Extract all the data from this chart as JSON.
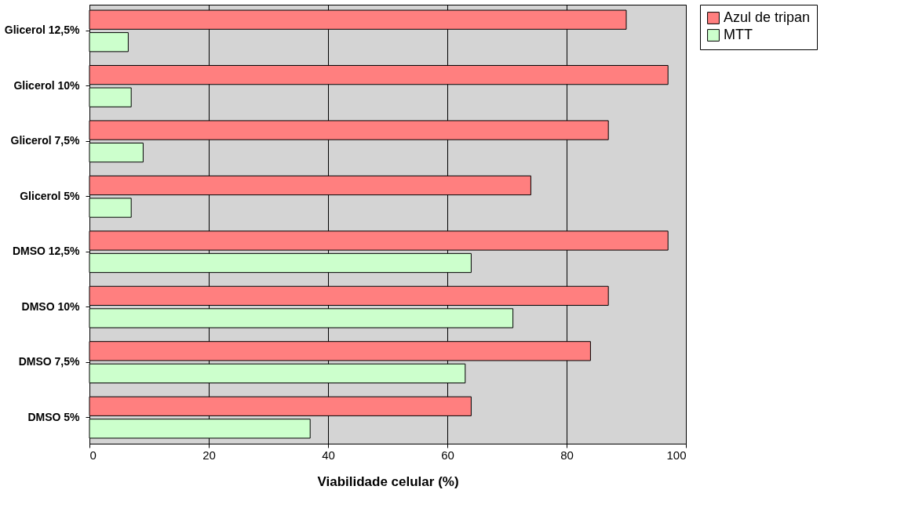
{
  "chart_data": {
    "type": "bar",
    "orientation": "horizontal",
    "xlabel": "Viabilidade celular (%)",
    "categories": [
      "Glicerol 12,5%",
      "Glicerol 10%",
      "Glicerol 7,5%",
      "Glicerol 5%",
      "DMSO 12,5%",
      "DMSO 10%",
      "DMSO 7,5%",
      "DMSO 5%"
    ],
    "series": [
      {
        "name": "Azul de tripan",
        "color": "#ff7f7f",
        "values": [
          90,
          97,
          87,
          74,
          97,
          87,
          84,
          64
        ]
      },
      {
        "name": "MTT",
        "color": "#ccffcc",
        "values": [
          6.5,
          7,
          9,
          7,
          64,
          71,
          63,
          37
        ]
      }
    ],
    "xlim": [
      0,
      100
    ],
    "xticks": [
      0,
      20,
      40,
      60,
      80,
      100
    ],
    "grid": "x",
    "legend": "right"
  }
}
